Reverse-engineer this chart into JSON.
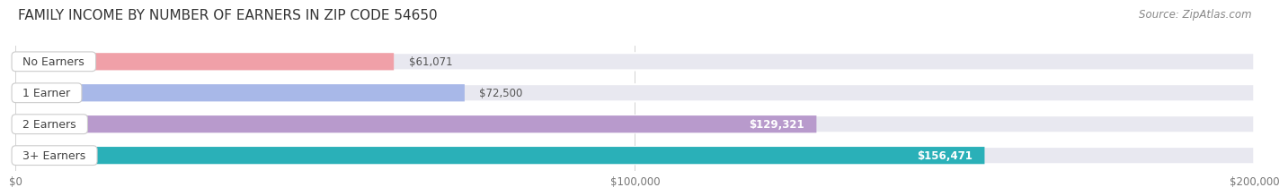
{
  "title": "FAMILY INCOME BY NUMBER OF EARNERS IN ZIP CODE 54650",
  "source": "Source: ZipAtlas.com",
  "categories": [
    "No Earners",
    "1 Earner",
    "2 Earners",
    "3+ Earners"
  ],
  "values": [
    61071,
    72500,
    129321,
    156471
  ],
  "bar_colors": [
    "#f0a0a8",
    "#a8b8e8",
    "#b89acc",
    "#2ab0b8"
  ],
  "bar_bg_color": "#e8e8f0",
  "background_color": "#ffffff",
  "plot_bg_color": "#ffffff",
  "xlim": [
    0,
    200000
  ],
  "xticks": [
    0,
    100000,
    200000
  ],
  "xtick_labels": [
    "$0",
    "$100,000",
    "$200,000"
  ],
  "title_fontsize": 11,
  "source_fontsize": 8.5,
  "bar_height": 0.55,
  "value_fontsize": 8.5,
  "category_fontsize": 9
}
